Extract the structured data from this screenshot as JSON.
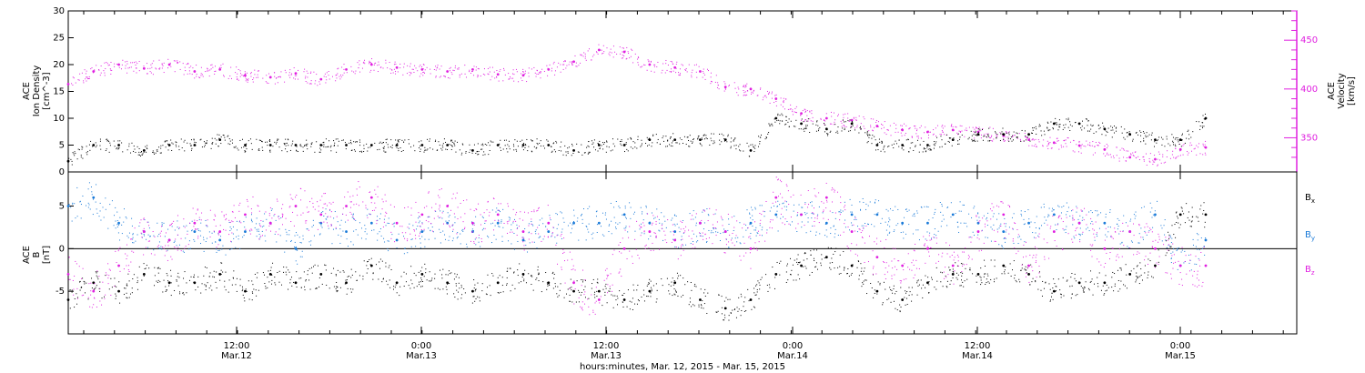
{
  "chart_data": [
    {
      "type": "scatter",
      "title": "",
      "ylabel_left": [
        "ACE",
        "Ion Density",
        "[cm^-3]"
      ],
      "ylabel_right": [
        "ACE",
        "Velocity",
        "[km/s]"
      ],
      "ylim_left": [
        0,
        30
      ],
      "yticks_left": [
        "0",
        "5",
        "10",
        "15",
        "20",
        "25",
        "30"
      ],
      "ylim_right": [
        315,
        480
      ],
      "yticks_right": [
        "350",
        "400",
        "450"
      ],
      "right_axis_color": "#e020e0",
      "series": [
        {
          "axis": "left",
          "color": "#000000",
          "x": [
            0,
            2,
            4,
            6,
            8,
            10,
            12,
            14,
            16,
            18,
            20,
            22,
            24,
            26,
            28,
            30,
            32,
            34,
            36,
            38,
            40,
            42,
            44,
            46,
            48,
            50,
            52,
            54,
            56,
            58,
            60,
            62,
            64,
            66,
            68,
            70,
            72,
            74,
            76,
            78,
            80,
            82,
            84,
            86,
            88,
            90
          ],
          "values": [
            2,
            5,
            5,
            4,
            5,
            5,
            6,
            5,
            5,
            5,
            5,
            5,
            5,
            5,
            5,
            5,
            4,
            5,
            5,
            5,
            4,
            5,
            5,
            6,
            6,
            6,
            6,
            4,
            10,
            9,
            8,
            9,
            5,
            5,
            5,
            6,
            7,
            7,
            7,
            9,
            9,
            8,
            7,
            6,
            6,
            10
          ]
        },
        {
          "axis": "right",
          "color": "#e020e0",
          "x": [
            0,
            2,
            4,
            6,
            8,
            10,
            12,
            14,
            16,
            18,
            20,
            22,
            24,
            26,
            28,
            30,
            32,
            34,
            36,
            38,
            40,
            42,
            44,
            46,
            48,
            50,
            52,
            54,
            56,
            58,
            60,
            62,
            64,
            66,
            68,
            70,
            72,
            74,
            76,
            78,
            80,
            82,
            84,
            86,
            88,
            90
          ],
          "values": [
            405,
            418,
            425,
            421,
            425,
            418,
            420,
            414,
            412,
            416,
            410,
            420,
            425,
            422,
            420,
            418,
            420,
            415,
            414,
            420,
            428,
            440,
            438,
            425,
            422,
            418,
            402,
            400,
            390,
            375,
            370,
            368,
            362,
            358,
            356,
            358,
            356,
            352,
            348,
            345,
            342,
            338,
            330,
            328,
            338,
            340
          ]
        }
      ]
    },
    {
      "type": "scatter",
      "title": "",
      "ylabel_left": [
        "ACE",
        "B",
        "[nT]"
      ],
      "ylim_left": [
        -10,
        9
      ],
      "yticks_left": [
        "-5",
        "0",
        "5"
      ],
      "zero_line": true,
      "series": [
        {
          "name": "B",
          "name_sub": "x",
          "color": "#000000",
          "x": [
            0,
            2,
            4,
            6,
            8,
            10,
            12,
            14,
            16,
            18,
            20,
            22,
            24,
            26,
            28,
            30,
            32,
            34,
            36,
            38,
            40,
            42,
            44,
            46,
            48,
            50,
            52,
            54,
            56,
            58,
            60,
            62,
            64,
            66,
            68,
            70,
            72,
            74,
            76,
            78,
            80,
            82,
            84,
            86,
            88,
            90
          ],
          "values": [
            -6,
            -4,
            -5,
            -3,
            -4,
            -4,
            -3,
            -5,
            -3,
            -4,
            -3,
            -4,
            -2,
            -4,
            -3,
            -4,
            -5,
            -4,
            -3,
            -4,
            -5,
            -5,
            -6,
            -5,
            -4,
            -6,
            -7,
            -6,
            -3,
            -2,
            -1,
            -2,
            -5,
            -6,
            -4,
            -3,
            -3,
            -2,
            -3,
            -5,
            -4,
            -4,
            -3,
            -2,
            4,
            4
          ]
        },
        {
          "name": "B",
          "name_sub": "y",
          "color": "#1a7ad8",
          "x": [
            0,
            2,
            4,
            6,
            8,
            10,
            12,
            14,
            16,
            18,
            20,
            22,
            24,
            26,
            28,
            30,
            32,
            34,
            36,
            38,
            40,
            42,
            44,
            46,
            48,
            50,
            52,
            54,
            56,
            58,
            60,
            62,
            64,
            66,
            68,
            70,
            72,
            74,
            76,
            78,
            80,
            82,
            84,
            86,
            88,
            90
          ],
          "values": [
            5,
            6,
            3,
            2,
            1,
            2,
            1,
            2,
            3,
            0,
            3,
            2,
            3,
            1,
            2,
            3,
            2,
            3,
            1,
            2,
            3,
            3,
            4,
            3,
            2,
            3,
            2,
            3,
            4,
            4,
            3,
            4,
            4,
            3,
            3,
            4,
            3,
            2,
            3,
            4,
            3,
            3,
            2,
            4,
            -2,
            1
          ]
        },
        {
          "name": "B",
          "name_sub": "z",
          "color": "#e020e0",
          "x": [
            0,
            2,
            4,
            6,
            8,
            10,
            12,
            14,
            16,
            18,
            20,
            22,
            24,
            26,
            28,
            30,
            32,
            34,
            36,
            38,
            40,
            42,
            44,
            46,
            48,
            50,
            52,
            54,
            56,
            58,
            60,
            62,
            64,
            66,
            68,
            70,
            72,
            74,
            76,
            78,
            80,
            82,
            84,
            86,
            88,
            90
          ],
          "values": [
            -3,
            -5,
            -2,
            2,
            1,
            3,
            2,
            4,
            3,
            5,
            4,
            5,
            6,
            3,
            4,
            5,
            3,
            4,
            2,
            3,
            -4,
            -6,
            0,
            2,
            1,
            3,
            2,
            0,
            6,
            4,
            6,
            2,
            -1,
            -2,
            0,
            -2,
            2,
            4,
            -2,
            2,
            3,
            0,
            2,
            0,
            -2,
            -2
          ]
        }
      ]
    }
  ],
  "x_axis": {
    "ticks": [
      {
        "time": "12:00",
        "date": "Mar.12"
      },
      {
        "time": "0:00",
        "date": "Mar.13"
      },
      {
        "time": "12:00",
        "date": "Mar.13"
      },
      {
        "time": "0:00",
        "date": "Mar.14"
      },
      {
        "time": "12:00",
        "date": "Mar.14"
      },
      {
        "time": "0:00",
        "date": "Mar.15"
      }
    ],
    "title": "hours:minutes, Mar. 12, 2015 - Mar. 15, 2015"
  },
  "colors": {
    "black": "#000000",
    "blue": "#1a7ad8",
    "magenta": "#e020e0"
  }
}
